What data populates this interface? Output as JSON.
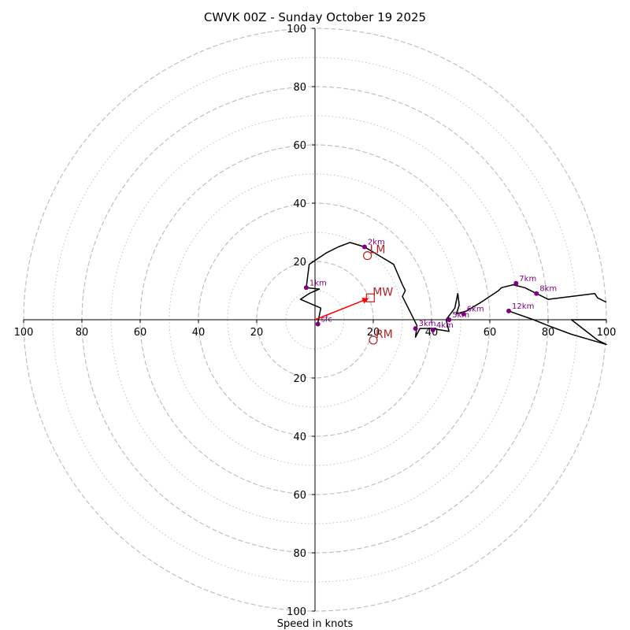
{
  "chart_data": {
    "type": "line",
    "subtype": "hodograph",
    "title": "CWVK 00Z - Sunday October 19 2025",
    "xlabel": "Speed in knots",
    "ylabel": "",
    "xlim": [
      -100,
      100
    ],
    "ylim": [
      -100,
      100
    ],
    "grid": true,
    "ring_major": [
      20,
      40,
      60,
      80,
      100
    ],
    "ring_minor": [
      10,
      30,
      50,
      70,
      90
    ],
    "x_ticks": [
      "100",
      "80",
      "60",
      "40",
      "20",
      "20",
      "40",
      "60",
      "80",
      "100"
    ],
    "x_tick_values": [
      -100,
      -80,
      -60,
      -40,
      -20,
      20,
      40,
      60,
      80,
      100
    ],
    "y_ticks": [
      "100",
      "80",
      "60",
      "40",
      "20",
      "20",
      "40",
      "60",
      "80",
      "100"
    ],
    "y_tick_values": [
      100,
      80,
      60,
      40,
      20,
      -20,
      -40,
      -60,
      -80,
      -100
    ],
    "colors": {
      "trace": "#000000",
      "height_markers": "#800080",
      "storm_motion": "#b22222",
      "mean_wind_vector": "#ff0000",
      "grid": "#bbbbbb"
    },
    "series": [
      {
        "name": "wind profile",
        "points": [
          [
            1,
            -1
          ],
          [
            2,
            4
          ],
          [
            -5,
            7
          ],
          [
            -2,
            9
          ],
          [
            1.5,
            10.5
          ],
          [
            -3,
            11
          ],
          [
            -2,
            19
          ],
          [
            1,
            21
          ],
          [
            4,
            23
          ],
          [
            8,
            25
          ],
          [
            12,
            26.5
          ],
          [
            17,
            25
          ],
          [
            22,
            22
          ],
          [
            27,
            19
          ],
          [
            30,
            12
          ],
          [
            31,
            10
          ],
          [
            30,
            8
          ],
          [
            33,
            2
          ],
          [
            35,
            -2
          ],
          [
            34.5,
            -6
          ],
          [
            36,
            -3
          ],
          [
            40,
            -3
          ],
          [
            46,
            -4
          ],
          [
            45,
            0
          ],
          [
            48,
            4
          ],
          [
            49,
            9
          ],
          [
            49.5,
            5
          ],
          [
            48.5,
            2
          ],
          [
            52,
            3
          ],
          [
            57,
            6
          ],
          [
            63,
            10
          ],
          [
            64,
            11
          ],
          [
            68,
            12
          ],
          [
            72,
            11
          ],
          [
            76,
            9
          ],
          [
            80,
            7
          ],
          [
            96,
            9
          ],
          [
            97,
            7.5
          ],
          [
            100,
            6
          ]
        ]
      },
      {
        "name": "upper profile",
        "points": [
          [
            66.5,
            3
          ],
          [
            75,
            0
          ],
          [
            80,
            -2
          ],
          [
            88,
            -5
          ],
          [
            100,
            -8.5
          ],
          [
            97,
            -7
          ],
          [
            88,
            0
          ],
          [
            100,
            0
          ]
        ]
      }
    ],
    "height_markers": [
      {
        "label": "sfc",
        "u": 1,
        "v": -1.5
      },
      {
        "label": "1km",
        "u": -3,
        "v": 11
      },
      {
        "label": "2km",
        "u": 17,
        "v": 25
      },
      {
        "label": "3km",
        "u": 34.5,
        "v": -3
      },
      {
        "label": "4km",
        "u": 40.5,
        "v": -3.5
      },
      {
        "label": "5km",
        "u": 46,
        "v": 0
      },
      {
        "label": "6km",
        "u": 51,
        "v": 2
      },
      {
        "label": "7km",
        "u": 69,
        "v": 12.5
      },
      {
        "label": "8km",
        "u": 76,
        "v": 9
      },
      {
        "label": "12km",
        "u": 66.5,
        "v": 3
      }
    ],
    "storm_motion": [
      {
        "label": "LM",
        "u": 18,
        "v": 22,
        "marker": "circle"
      },
      {
        "label": "RM",
        "u": 20,
        "v": -7,
        "marker": "circle"
      },
      {
        "label": "MW",
        "u": 19,
        "v": 7.5,
        "marker": "square"
      }
    ],
    "mean_wind_vector": {
      "u": 19,
      "v": 7.5
    }
  }
}
